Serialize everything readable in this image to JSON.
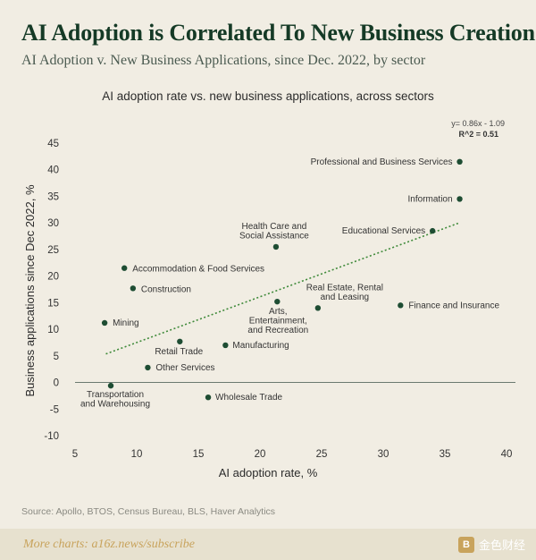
{
  "header": {
    "title": "AI Adoption is Correlated To New Business Creation",
    "subtitle": "AI Adoption v. New Business Applications, since Dec. 2022, by sector"
  },
  "chart_data": {
    "type": "scatter",
    "title": "AI adoption rate vs. new business applications, across sectors",
    "xlabel": "AI adoption rate, %",
    "ylabel": "Business applications since Dec 2022, %",
    "xlim": [
      5,
      40
    ],
    "ylim": [
      -10,
      45
    ],
    "xticks": [
      5,
      10,
      15,
      20,
      25,
      30,
      35,
      40
    ],
    "yticks": [
      -10,
      -5,
      0,
      5,
      10,
      15,
      20,
      25,
      30,
      35,
      40,
      45
    ],
    "grid": false,
    "trendline": {
      "equation": "y= 0.86x - 1.09",
      "r2_label": "R^2 = 0.51",
      "slope": 0.86,
      "intercept": -1.09,
      "x_range": [
        7.5,
        36.2
      ]
    },
    "points": [
      {
        "name": "Professional and Business Services",
        "x": 36.2,
        "y": 41.5
      },
      {
        "name": "Information",
        "x": 36.2,
        "y": 34.5
      },
      {
        "name": "Educational Services",
        "x": 34.0,
        "y": 28.5
      },
      {
        "name": "Health Care and Social Assistance",
        "x": 21.3,
        "y": 25.5
      },
      {
        "name": "Accommodation & Food Services",
        "x": 9.0,
        "y": 21.5
      },
      {
        "name": "Construction",
        "x": 9.7,
        "y": 17.7
      },
      {
        "name": "Real Estate, Rental and Leasing",
        "x": 24.7,
        "y": 14.0
      },
      {
        "name": "Finance and Insurance",
        "x": 31.4,
        "y": 14.5
      },
      {
        "name": "Arts, Entertainment, and Recreation",
        "x": 21.4,
        "y": 15.2
      },
      {
        "name": "Mining",
        "x": 7.4,
        "y": 11.2
      },
      {
        "name": "Retail Trade",
        "x": 13.5,
        "y": 7.7
      },
      {
        "name": "Manufacturing",
        "x": 17.2,
        "y": 7.0
      },
      {
        "name": "Other Services",
        "x": 10.9,
        "y": 2.8
      },
      {
        "name": "Transportation and Warehousing",
        "x": 7.9,
        "y": -0.6
      },
      {
        "name": "Wholesale Trade",
        "x": 15.8,
        "y": -2.8
      }
    ],
    "colors": {
      "point": "#1e4d33",
      "trend": "#3f8a3a",
      "zero_line": "#6b7a70"
    }
  },
  "source": "Source: Apollo, BTOS, Census Bureau, BLS, Haver Analytics",
  "footer": {
    "cta": "More charts: a16z.news/subscribe",
    "watermark": "金色财经"
  }
}
